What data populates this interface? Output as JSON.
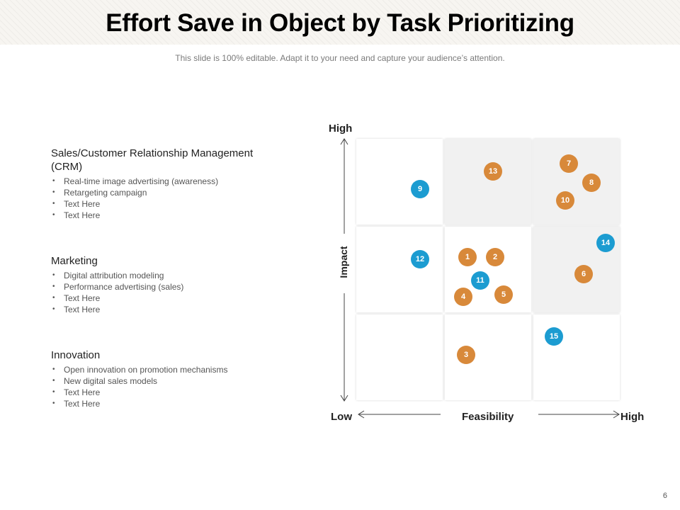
{
  "slide": {
    "title": "Effort Save in Object by Task Prioritizing",
    "subtitle": "This slide is 100% editable. Adapt it to your need and capture your audience’s attention.",
    "page_number": "6"
  },
  "sections": [
    {
      "heading": "Sales/Customer Relationship Management (CRM)",
      "items": [
        "Real-time image advertising (awareness)",
        "Retargeting campaign",
        "Text Here",
        "Text Here"
      ]
    },
    {
      "heading": "Marketing",
      "items": [
        "Digital attribution modeling",
        "Performance advertising (sales)",
        "Text Here",
        "Text Here"
      ]
    },
    {
      "heading": "Innovation",
      "items": [
        "Open innovation on promotion mechanisms",
        "New digital sales models",
        "Text Here",
        "Text Here"
      ]
    }
  ],
  "matrix": {
    "y_axis_title": "Impact",
    "y_high": "High",
    "x_axis_title": "Feasibility",
    "x_low": "Low",
    "x_high": "High",
    "colors": {
      "orange": "#d8893a",
      "blue": "#1c9cd1",
      "shaded_cell": "#f1f1f1"
    },
    "shaded_cells": [
      "top-middle",
      "top-right",
      "middle-right"
    ],
    "bubbles": [
      {
        "label": "1",
        "color": "orange"
      },
      {
        "label": "2",
        "color": "orange"
      },
      {
        "label": "3",
        "color": "orange"
      },
      {
        "label": "4",
        "color": "orange"
      },
      {
        "label": "5",
        "color": "orange"
      },
      {
        "label": "6",
        "color": "orange"
      },
      {
        "label": "7",
        "color": "orange"
      },
      {
        "label": "8",
        "color": "orange"
      },
      {
        "label": "9",
        "color": "blue"
      },
      {
        "label": "10",
        "color": "orange"
      },
      {
        "label": "11",
        "color": "blue"
      },
      {
        "label": "12",
        "color": "blue"
      },
      {
        "label": "13",
        "color": "orange"
      },
      {
        "label": "14",
        "color": "blue"
      },
      {
        "label": "15",
        "color": "blue"
      }
    ]
  }
}
